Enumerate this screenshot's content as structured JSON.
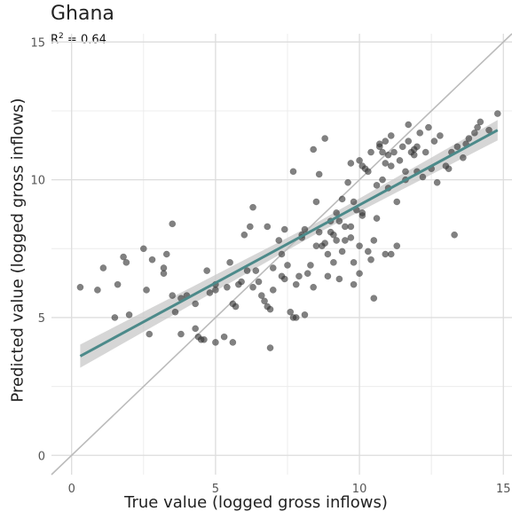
{
  "chart_data": {
    "type": "scatter",
    "title": "Ghana",
    "annotation": {
      "label": "R",
      "superscript": "2",
      "value": "= 0.64"
    },
    "xlabel": "True value (logged gross inflows)",
    "ylabel": "Predicted value (logged gross inflows)",
    "xlim": [
      -0.7,
      15.3
    ],
    "ylim": [
      -0.7,
      15.3
    ],
    "x_ticks": [
      "0",
      "5",
      "10",
      "15"
    ],
    "y_ticks": [
      "0",
      "5",
      "10",
      "15"
    ],
    "x_tick_values": [
      0,
      5,
      10,
      15
    ],
    "y_tick_values": [
      0,
      5,
      10,
      15
    ],
    "grid": true,
    "colors": {
      "points": "#333333",
      "fit_line": "#4c8a8a",
      "ci_band": "#c8c8c8",
      "reference_line": "#bbbbbb",
      "grid": "#dddddd"
    },
    "fit_line": {
      "x": [
        0.3,
        14.8
      ],
      "y": [
        3.6,
        11.8
      ]
    },
    "reference_line": {
      "x": [
        -0.7,
        15.3
      ],
      "y": [
        -0.7,
        15.3
      ]
    },
    "points": [
      [
        0.3,
        6.1
      ],
      [
        0.9,
        6.0
      ],
      [
        1.1,
        6.8
      ],
      [
        1.5,
        5.0
      ],
      [
        1.6,
        6.2
      ],
      [
        1.8,
        7.2
      ],
      [
        1.9,
        7.0
      ],
      [
        2.0,
        5.1
      ],
      [
        2.5,
        7.5
      ],
      [
        2.6,
        6.0
      ],
      [
        2.7,
        4.4
      ],
      [
        2.8,
        7.1
      ],
      [
        3.2,
        6.6
      ],
      [
        3.2,
        6.8
      ],
      [
        3.3,
        7.3
      ],
      [
        3.5,
        8.4
      ],
      [
        3.5,
        5.8
      ],
      [
        3.6,
        5.2
      ],
      [
        3.8,
        4.4
      ],
      [
        3.8,
        5.7
      ],
      [
        4.3,
        4.6
      ],
      [
        4.3,
        5.5
      ],
      [
        4.4,
        4.3
      ],
      [
        4.5,
        4.2
      ],
      [
        4.6,
        4.2
      ],
      [
        4.7,
        6.7
      ],
      [
        4.8,
        5.9
      ],
      [
        5.0,
        6.0
      ],
      [
        5.0,
        4.1
      ],
      [
        5.3,
        4.3
      ],
      [
        5.4,
        6.1
      ],
      [
        5.5,
        7.0
      ],
      [
        5.6,
        4.1
      ],
      [
        5.6,
        5.5
      ],
      [
        5.7,
        5.4
      ],
      [
        5.8,
        6.2
      ],
      [
        5.9,
        6.3
      ],
      [
        6.0,
        8.0
      ],
      [
        6.2,
        8.3
      ],
      [
        6.3,
        6.1
      ],
      [
        6.3,
        9.0
      ],
      [
        6.4,
        6.7
      ],
      [
        6.5,
        6.3
      ],
      [
        6.6,
        5.8
      ],
      [
        6.7,
        5.6
      ],
      [
        6.8,
        8.3
      ],
      [
        6.8,
        5.4
      ],
      [
        6.9,
        3.9
      ],
      [
        6.9,
        5.3
      ],
      [
        7.0,
        6.8
      ],
      [
        7.0,
        6.0
      ],
      [
        7.2,
        7.8
      ],
      [
        7.3,
        6.5
      ],
      [
        7.3,
        7.3
      ],
      [
        7.4,
        8.2
      ],
      [
        7.4,
        6.4
      ],
      [
        7.5,
        6.9
      ],
      [
        7.6,
        5.2
      ],
      [
        7.7,
        5.0
      ],
      [
        7.7,
        10.3
      ],
      [
        7.8,
        5.0
      ],
      [
        7.8,
        6.2
      ],
      [
        7.9,
        6.5
      ],
      [
        8.0,
        8.0
      ],
      [
        8.0,
        7.9
      ],
      [
        8.1,
        8.2
      ],
      [
        8.1,
        5.1
      ],
      [
        8.2,
        6.6
      ],
      [
        8.3,
        6.9
      ],
      [
        8.4,
        6.1
      ],
      [
        8.4,
        11.1
      ],
      [
        8.5,
        7.6
      ],
      [
        8.5,
        9.2
      ],
      [
        8.6,
        8.1
      ],
      [
        8.6,
        10.2
      ],
      [
        8.7,
        7.6
      ],
      [
        8.8,
        7.7
      ],
      [
        8.9,
        6.5
      ],
      [
        8.9,
        7.3
      ],
      [
        9.0,
        8.1
      ],
      [
        9.0,
        8.5
      ],
      [
        9.1,
        7.0
      ],
      [
        9.2,
        7.8
      ],
      [
        9.2,
        8.8
      ],
      [
        9.3,
        6.4
      ],
      [
        9.3,
        8.5
      ],
      [
        9.4,
        9.3
      ],
      [
        9.4,
        7.4
      ],
      [
        9.5,
        8.3
      ],
      [
        9.5,
        7.8
      ],
      [
        9.6,
        9.9
      ],
      [
        9.7,
        10.6
      ],
      [
        9.7,
        8.3
      ],
      [
        9.7,
        7.9
      ],
      [
        9.8,
        7.0
      ],
      [
        9.8,
        6.2
      ],
      [
        9.8,
        9.2
      ],
      [
        9.9,
        8.9
      ],
      [
        10.0,
        10.7
      ],
      [
        10.0,
        6.6
      ],
      [
        10.0,
        7.6
      ],
      [
        10.1,
        8.7
      ],
      [
        10.1,
        10.5
      ],
      [
        10.1,
        8.8
      ],
      [
        10.2,
        10.4
      ],
      [
        10.3,
        10.3
      ],
      [
        10.3,
        7.4
      ],
      [
        10.4,
        11.0
      ],
      [
        10.4,
        7.1
      ],
      [
        10.5,
        7.8
      ],
      [
        10.5,
        5.7
      ],
      [
        10.6,
        8.6
      ],
      [
        10.6,
        9.8
      ],
      [
        10.7,
        11.2
      ],
      [
        10.7,
        11.3
      ],
      [
        10.8,
        10.0
      ],
      [
        10.8,
        11.0
      ],
      [
        10.9,
        11.4
      ],
      [
        10.9,
        7.3
      ],
      [
        11.0,
        9.7
      ],
      [
        11.0,
        10.9
      ],
      [
        11.1,
        10.5
      ],
      [
        11.1,
        11.6
      ],
      [
        11.1,
        7.3
      ],
      [
        11.2,
        11.0
      ],
      [
        11.3,
        9.2
      ],
      [
        11.3,
        7.6
      ],
      [
        11.4,
        10.7
      ],
      [
        11.5,
        11.2
      ],
      [
        11.6,
        10.3
      ],
      [
        11.6,
        10.0
      ],
      [
        11.7,
        11.4
      ],
      [
        11.7,
        12.0
      ],
      [
        11.8,
        11.0
      ],
      [
        11.9,
        10.9
      ],
      [
        12.0,
        10.3
      ],
      [
        12.0,
        11.2
      ],
      [
        12.1,
        11.7
      ],
      [
        12.2,
        10.1
      ],
      [
        12.3,
        11.0
      ],
      [
        12.4,
        11.9
      ],
      [
        12.5,
        10.4
      ],
      [
        12.6,
        11.4
      ],
      [
        12.7,
        9.9
      ],
      [
        13.0,
        10.5
      ],
      [
        13.1,
        10.4
      ],
      [
        13.2,
        11.0
      ],
      [
        13.3,
        8.0
      ],
      [
        13.4,
        11.2
      ],
      [
        13.6,
        10.8
      ],
      [
        13.7,
        11.3
      ],
      [
        13.8,
        11.5
      ],
      [
        14.0,
        11.7
      ],
      [
        14.1,
        11.9
      ],
      [
        14.2,
        12.1
      ],
      [
        14.5,
        11.8
      ],
      [
        14.8,
        12.4
      ],
      [
        5.0,
        6.2
      ],
      [
        4.0,
        5.8
      ],
      [
        6.1,
        6.7
      ],
      [
        8.8,
        11.5
      ],
      [
        9.1,
        8.0
      ],
      [
        10.9,
        10.6
      ],
      [
        11.9,
        11.1
      ],
      [
        12.8,
        11.6
      ]
    ]
  }
}
